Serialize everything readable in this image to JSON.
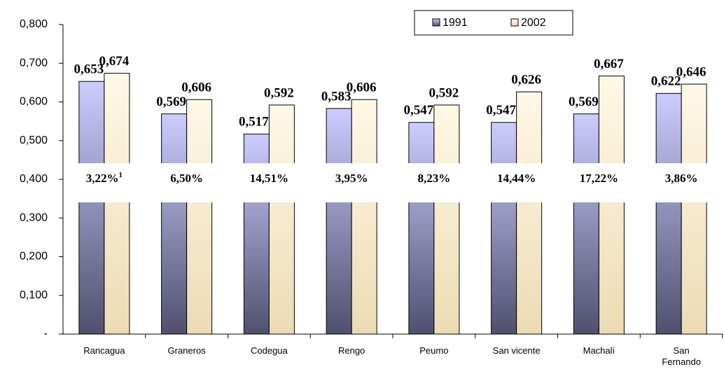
{
  "chart_data": {
    "type": "bar",
    "categories": [
      "Rancagua",
      "Graneros",
      "Codegua",
      "Rengo",
      "Peumo",
      "San vicente",
      "Machalí",
      "San Fernando"
    ],
    "series": [
      {
        "name": "1991",
        "color": "#ccccff",
        "values": [
          0.653,
          0.569,
          0.517,
          0.583,
          0.547,
          0.547,
          0.569,
          0.622
        ],
        "value_labels": [
          "0,653",
          "0,569",
          "0,517",
          "0,583",
          "0,547",
          "0,547",
          "0,569",
          "0,622"
        ]
      },
      {
        "name": "2002",
        "color": "#fff3d6",
        "values": [
          0.674,
          0.606,
          0.592,
          0.606,
          0.592,
          0.626,
          0.667,
          0.646
        ],
        "value_labels": [
          "0,674",
          "0,606",
          "0,592",
          "0,606",
          "0,592",
          "0,626",
          "0,667",
          "0,646"
        ]
      }
    ],
    "annotations": [
      "3,22%",
      "6,50%",
      "14,51%",
      "3,95%",
      "8,23%",
      "14,44%",
      "17,22%",
      "3,86%"
    ],
    "footnote_marker": "1",
    "ylim": [
      0,
      0.8
    ],
    "yticks": [
      {
        "value": 0,
        "label": "-"
      },
      {
        "value": 0.1,
        "label": "0,100"
      },
      {
        "value": 0.2,
        "label": "0,200"
      },
      {
        "value": 0.3,
        "label": "0,300"
      },
      {
        "value": 0.4,
        "label": "0,400"
      },
      {
        "value": 0.5,
        "label": "0,500"
      },
      {
        "value": 0.6,
        "label": "0,600"
      },
      {
        "value": 0.7,
        "label": "0,700"
      },
      {
        "value": 0.8,
        "label": "0,800"
      }
    ],
    "legend": "top-right"
  }
}
